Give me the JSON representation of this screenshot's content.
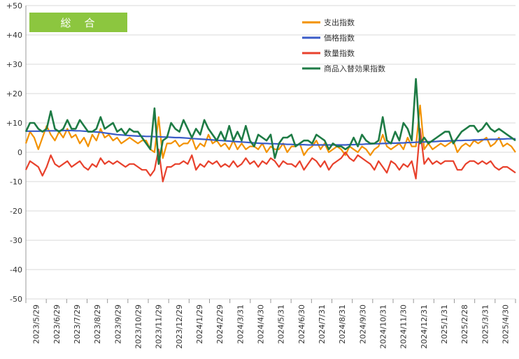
{
  "chart_data": {
    "type": "line",
    "title_badge": "総　合",
    "ylim": [
      -50,
      50
    ],
    "y_ticks": [
      50,
      40,
      30,
      20,
      10,
      0,
      -10,
      -20,
      -30,
      -40,
      -50
    ],
    "y_tick_labels": [
      "+50",
      "+40",
      "+30",
      "+20",
      "+10",
      "0",
      "-10",
      "-20",
      "-30",
      "-40",
      "-50"
    ],
    "x_tick_labels": [
      "2023/5/29",
      "2023/6/29",
      "2023/7/29",
      "2023/8/29",
      "2023/9/29",
      "2023/10/29",
      "2023/11/29",
      "2023/12/29",
      "2024/1/29",
      "2024/2/29",
      "2024/3/31",
      "2024/4/30",
      "2024/5/31",
      "2024/6/30",
      "2024/7/31",
      "2024/8/31",
      "2024/9/30",
      "2024/10/31",
      "2024/11/30",
      "2024/12/31",
      "2025/1/31",
      "2025/2/28",
      "2025/3/31",
      "2025/4/30"
    ],
    "grid": "horizontal",
    "legend_position": "top-right",
    "series": [
      {
        "name": "支出指数",
        "color": "#F39200",
        "values": [
          3,
          7,
          5,
          1,
          5,
          9,
          6,
          4,
          7,
          5,
          8,
          5,
          6,
          3,
          5,
          2,
          6,
          4,
          8,
          5,
          6,
          4,
          5,
          3,
          4,
          5,
          4,
          3,
          4,
          4,
          1,
          0,
          12,
          -2,
          3,
          3,
          4,
          2,
          3,
          3,
          5,
          1,
          3,
          2,
          6,
          3,
          4,
          2,
          3,
          1,
          4,
          1,
          3,
          1,
          2,
          2,
          1,
          3,
          0,
          2,
          1,
          1,
          3,
          0,
          2,
          2,
          3,
          -1,
          1,
          2,
          4,
          1,
          3,
          0,
          1,
          2,
          1,
          -1,
          2,
          1,
          0,
          2,
          1,
          -1,
          1,
          2,
          6,
          2,
          1,
          2,
          3,
          1,
          5,
          2,
          2,
          16,
          1,
          3,
          1,
          2,
          3,
          2,
          3,
          4,
          0,
          2,
          3,
          2,
          4,
          3,
          4,
          5,
          2,
          3,
          5,
          2,
          3,
          2,
          0
        ]
      },
      {
        "name": "価格指数",
        "color": "#3A5BC7",
        "values": [
          7.2,
          7.2,
          7.2,
          7.2,
          7.2,
          7.3,
          7.3,
          7.3,
          7.3,
          7.4,
          7.4,
          7.4,
          7.3,
          7.3,
          7.2,
          7.1,
          7,
          6.9,
          6.8,
          6.6,
          6.4,
          6.2,
          6,
          5.9,
          5.8,
          5.7,
          5.6,
          5.5,
          5.5,
          5.4,
          5.4,
          5.3,
          5.3,
          5.2,
          5.2,
          5.1,
          5,
          5,
          4.9,
          4.8,
          4.7,
          4.6,
          4.5,
          4.4,
          4.3,
          4.2,
          4.1,
          4,
          3.9,
          3.8,
          3.7,
          3.6,
          3.5,
          3.4,
          3.3,
          3.2,
          3.1,
          3,
          3,
          2.9,
          2.9,
          2.8,
          2.8,
          2.7,
          2.7,
          2.6,
          2.6,
          2.6,
          2.5,
          2.5,
          2.5,
          2.5,
          2.5,
          2.5,
          2.5,
          2.5,
          2.5,
          2.5,
          2.6,
          2.6,
          2.7,
          2.7,
          2.8,
          2.8,
          2.9,
          2.9,
          3,
          3,
          3.1,
          3.1,
          3.2,
          3.2,
          3.3,
          3.3,
          3.4,
          3.5,
          3.5,
          3.6,
          3.6,
          3.7,
          3.8,
          3.8,
          3.9,
          3.9,
          4,
          4,
          4.1,
          4.1,
          4.2,
          4.2,
          4.3,
          4.3,
          4.4,
          4.4,
          4.5,
          4.5,
          4.6,
          4.6,
          4.6
        ]
      },
      {
        "name": "数量指数",
        "color": "#E8412C",
        "values": [
          -6,
          -3,
          -4,
          -5,
          -8,
          -5,
          -1,
          -4,
          -5,
          -4,
          -3,
          -5,
          -4,
          -3,
          -5,
          -6,
          -4,
          -5,
          -2,
          -4,
          -3,
          -4,
          -3,
          -4,
          -5,
          -4,
          -4,
          -5,
          -6,
          -6,
          -8,
          -6,
          1,
          -10,
          -5,
          -5,
          -4,
          -4,
          -3,
          -4,
          -1,
          -6,
          -4,
          -5,
          -3,
          -4,
          -3,
          -5,
          -4,
          -5,
          -3,
          -5,
          -4,
          -2,
          -4,
          -3,
          -5,
          -3,
          -4,
          -2,
          -3,
          -5,
          -3,
          -4,
          -4,
          -5,
          -3,
          -6,
          -4,
          -2,
          -3,
          -5,
          -3,
          -6,
          -4,
          -3,
          -2,
          0,
          -2,
          -3,
          -1,
          -2,
          -3,
          -4,
          -6,
          -3,
          -5,
          -7,
          -3,
          -4,
          -6,
          -4,
          -5,
          -3,
          -9,
          8,
          -4,
          -2,
          -4,
          -3,
          -4,
          -3,
          -3,
          -3,
          -6,
          -6,
          -4,
          -3,
          -3,
          -4,
          -3,
          -4,
          -3,
          -5,
          -6,
          -5,
          -5,
          -6,
          -7
        ]
      },
      {
        "name": "商品入替効果指数",
        "color": "#1E7B45",
        "values": [
          7,
          10,
          10,
          8,
          7,
          8,
          14,
          8,
          7,
          8,
          11,
          8,
          8,
          11,
          9,
          7,
          7,
          8,
          12,
          8,
          9,
          10,
          7,
          8,
          6,
          8,
          7,
          7,
          5,
          3,
          1,
          15,
          -4,
          4,
          5,
          10,
          8,
          7,
          11,
          8,
          5,
          8,
          6,
          11,
          8,
          6,
          4,
          7,
          4,
          9,
          4,
          7,
          4,
          9,
          4,
          2,
          6,
          5,
          4,
          6,
          -2,
          3,
          5,
          5,
          6,
          2,
          3,
          4,
          4,
          3,
          6,
          5,
          4,
          1,
          3,
          2,
          2,
          1,
          2,
          5,
          2,
          6,
          4,
          3,
          3,
          4,
          12,
          4,
          3,
          7,
          4,
          10,
          8,
          4,
          25,
          3,
          5,
          3,
          4,
          5,
          6,
          7,
          7,
          3,
          5,
          7,
          8,
          9,
          9,
          7,
          8,
          10,
          8,
          7,
          8,
          7,
          6,
          5,
          4
        ]
      }
    ]
  }
}
